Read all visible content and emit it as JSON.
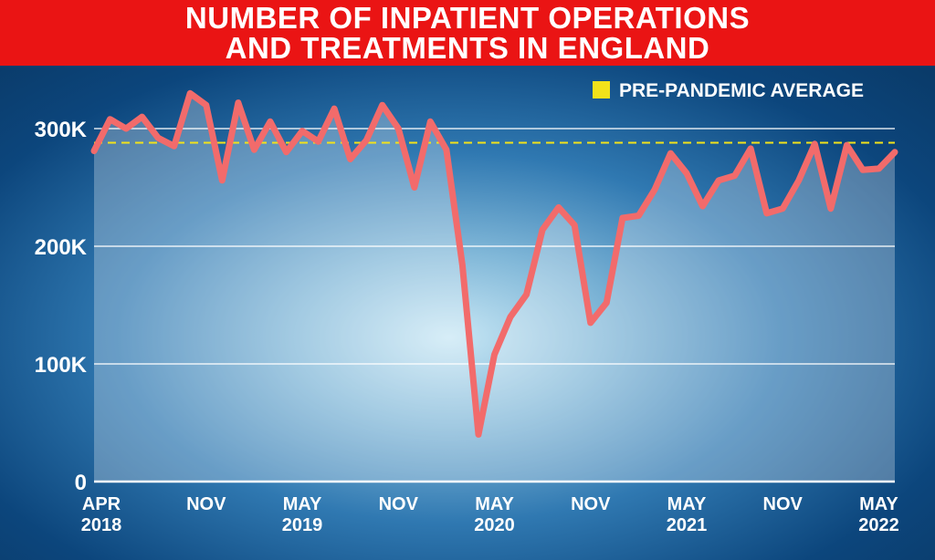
{
  "header": {
    "title_line1": "NUMBER OF INPATIENT OPERATIONS",
    "title_line2": "AND TREATMENTS IN ENGLAND"
  },
  "colors": {
    "header_bg": "#ea1414",
    "series_line": "#f26b6b",
    "reference_line": "#f2e21a",
    "gridline": "#ffffff"
  },
  "chart_data": {
    "type": "area",
    "title": "NUMBER OF INPATIENT OPERATIONS AND TREATMENTS IN ENGLAND",
    "ylim": [
      0,
      330000
    ],
    "yticks": [
      {
        "value": 0,
        "label": "0"
      },
      {
        "value": 100000,
        "label": "100K"
      },
      {
        "value": 200000,
        "label": "200K"
      },
      {
        "value": 300000,
        "label": "300K"
      }
    ],
    "xticks": [
      {
        "index": 0,
        "line1": "APR",
        "line2": "2018"
      },
      {
        "index": 7,
        "line1": "NOV",
        "line2": ""
      },
      {
        "index": 13,
        "line1": "MAY",
        "line2": "2019"
      },
      {
        "index": 19,
        "line1": "NOV",
        "line2": ""
      },
      {
        "index": 25,
        "line1": "MAY",
        "line2": "2020"
      },
      {
        "index": 31,
        "line1": "NOV",
        "line2": ""
      },
      {
        "index": 37,
        "line1": "MAY",
        "line2": "2021"
      },
      {
        "index": 43,
        "line1": "NOV",
        "line2": ""
      },
      {
        "index": 49,
        "line1": "MAY",
        "line2": "2022"
      }
    ],
    "grid": true,
    "legend": {
      "label": "PRE-PANDEMIC AVERAGE",
      "position": "top-right"
    },
    "reference_line": {
      "name": "PRE-PANDEMIC AVERAGE",
      "value": 288000
    },
    "series": [
      {
        "values": [
          281000,
          308000,
          300000,
          310000,
          292000,
          285000,
          330000,
          320000,
          256000,
          322000,
          282000,
          306000,
          280000,
          298000,
          289000,
          317000,
          274000,
          290000,
          320000,
          300000,
          250000,
          306000,
          282000,
          184000,
          40000,
          108000,
          140000,
          159000,
          214000,
          233000,
          218000,
          135000,
          152000,
          224000,
          226000,
          248000,
          279000,
          262000,
          234000,
          256000,
          260000,
          283000,
          228000,
          232000,
          256000,
          287000,
          232000,
          286000,
          265000,
          266000,
          280000
        ]
      }
    ]
  }
}
